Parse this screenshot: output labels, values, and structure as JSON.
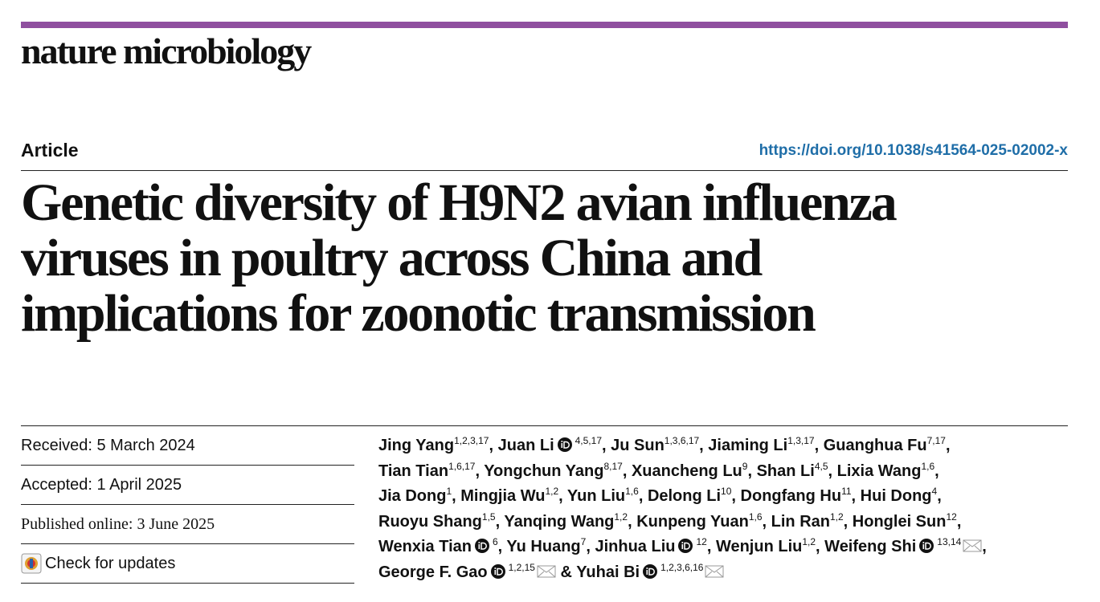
{
  "journal": "nature microbiology",
  "article_type": "Article",
  "doi": "https://doi.org/10.1038/s41564-025-02002-x",
  "title_lines": [
    "Genetic diversity of H9N2 avian influenza",
    "viruses in poultry across China and",
    "implications for zoonotic transmission"
  ],
  "dates": {
    "received": "Received: 5 March 2024",
    "accepted": "Accepted: 1 April 2025",
    "published": "Published online: 3 June 2025",
    "check_updates": "Check for updates"
  },
  "separator": ",",
  "last_separator": "&",
  "author_lines": [
    [
      {
        "name": "Jing Yang",
        "affiliations": "1,2,3,17"
      },
      {
        "name": "Juan Li",
        "affiliations": "4,5,17",
        "orcid": true
      },
      {
        "name": "Ju Sun",
        "affiliations": "1,3,6,17"
      },
      {
        "name": "Jiaming Li",
        "affiliations": "1,3,17"
      },
      {
        "name": "Guanghua Fu",
        "affiliations": "7,17"
      }
    ],
    [
      {
        "name": "Tian Tian",
        "affiliations": "1,6,17"
      },
      {
        "name": "Yongchun Yang",
        "affiliations": "8,17"
      },
      {
        "name": "Xuancheng Lu",
        "affiliations": "9"
      },
      {
        "name": "Shan Li",
        "affiliations": "4,5"
      },
      {
        "name": "Lixia Wang",
        "affiliations": "1,6"
      }
    ],
    [
      {
        "name": "Jia Dong",
        "affiliations": "1"
      },
      {
        "name": "Mingjia Wu",
        "affiliations": "1,2"
      },
      {
        "name": "Yun Liu",
        "affiliations": "1,6"
      },
      {
        "name": "Delong Li",
        "affiliations": "10"
      },
      {
        "name": "Dongfang Hu",
        "affiliations": "11"
      },
      {
        "name": "Hui Dong",
        "affiliations": "4"
      }
    ],
    [
      {
        "name": "Ruoyu Shang",
        "affiliations": "1,5"
      },
      {
        "name": "Yanqing Wang",
        "affiliations": "1,2"
      },
      {
        "name": "Kunpeng Yuan",
        "affiliations": "1,6"
      },
      {
        "name": "Lin Ran",
        "affiliations": "1,2"
      },
      {
        "name": "Honglei Sun",
        "affiliations": "12"
      }
    ],
    [
      {
        "name": "Wenxia Tian",
        "affiliations": "6",
        "orcid": true
      },
      {
        "name": "Yu Huang",
        "affiliations": "7"
      },
      {
        "name": "Jinhua Liu",
        "affiliations": "12",
        "orcid": true
      },
      {
        "name": "Wenjun Liu",
        "affiliations": "1,2"
      },
      {
        "name": "Weifeng Shi",
        "affiliations": "13,14",
        "orcid": true,
        "corresponding": true
      }
    ],
    [
      {
        "name": "George F. Gao",
        "affiliations": "1,2,15",
        "orcid": true,
        "corresponding": true
      },
      {
        "name": "Yuhai Bi",
        "affiliations": "1,2,3,6,16",
        "orcid": true,
        "corresponding": true
      }
    ]
  ]
}
